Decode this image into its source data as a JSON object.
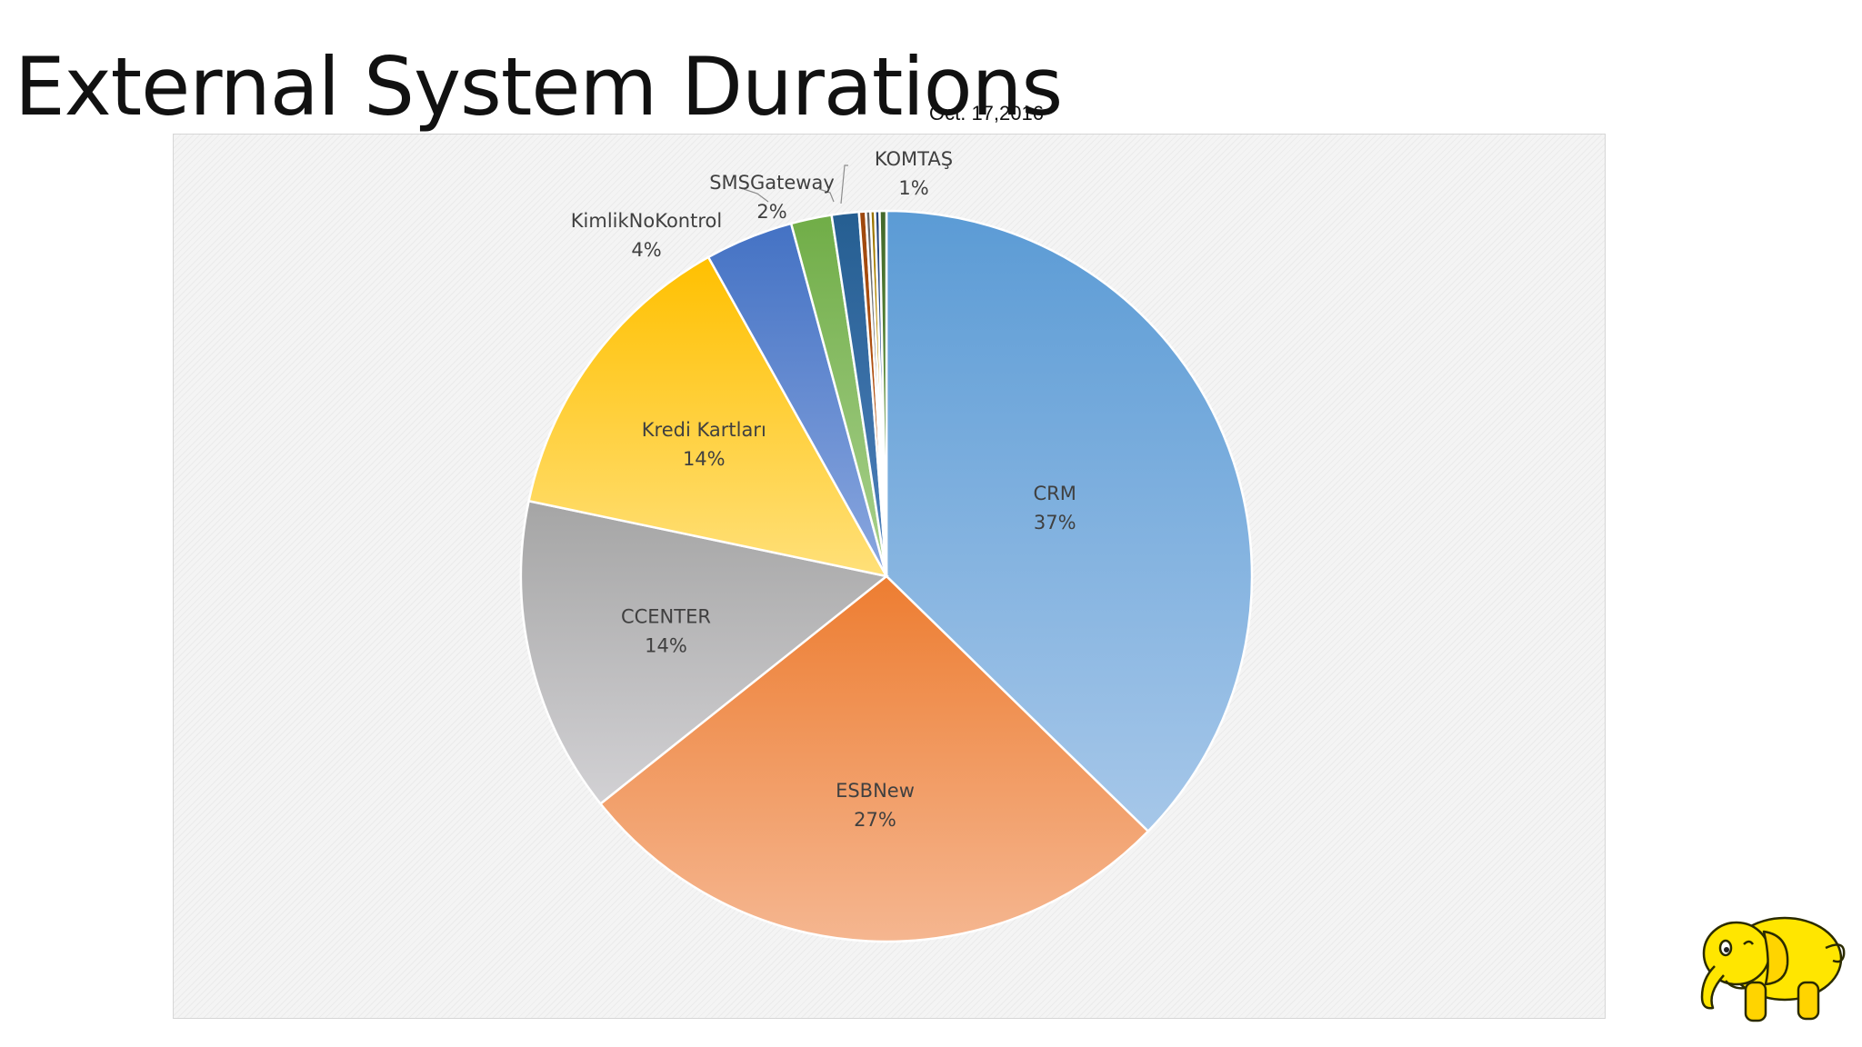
{
  "slide": {
    "title": "External System Durations",
    "date": "Oct. 17,2016"
  },
  "chart_data": {
    "type": "pie",
    "title": "",
    "start_angle_deg": 0,
    "direction": "clockwise",
    "slices": [
      {
        "name": "CRM",
        "label": "37%",
        "value": 37.3,
        "color_top": "#5b9bd5",
        "color_bottom": "#a6c7e9",
        "show_label": true,
        "label_inside": true
      },
      {
        "name": "ESBNew",
        "label": "27%",
        "value": 27.0,
        "color_top": "#ed7d31",
        "color_bottom": "#f5b690",
        "show_label": true,
        "label_inside": true
      },
      {
        "name": "CCENTER",
        "label": "14%",
        "value": 14.0,
        "color_top": "#a5a5a5",
        "color_bottom": "#d2d1d4",
        "show_label": true,
        "label_inside": true
      },
      {
        "name": "Kredi Kartları",
        "label": "14%",
        "value": 13.6,
        "color_top": "#ffc000",
        "color_bottom": "#ffe079",
        "show_label": true,
        "label_inside": true
      },
      {
        "name": "KimlikNoKontrol",
        "label": "4%",
        "value": 3.9,
        "color_top": "#4472c4",
        "color_bottom": "#8aa7df",
        "show_label": true,
        "label_inside": false
      },
      {
        "name": "SMSGateway",
        "label": "2%",
        "value": 1.8,
        "color_top": "#70ad47",
        "color_bottom": "#a9d18e",
        "show_label": true,
        "label_inside": false
      },
      {
        "name": "KOMTAŞ",
        "label": "1%",
        "value": 1.2,
        "color_top": "#255e91",
        "color_bottom": "#4f81bd",
        "show_label": true,
        "label_inside": false
      },
      {
        "name": "other-1",
        "label": "",
        "value": 0.3,
        "color_top": "#9e480e",
        "color_bottom": "#c65911",
        "show_label": false
      },
      {
        "name": "other-2",
        "label": "",
        "value": 0.2,
        "color_top": "#636363",
        "color_bottom": "#a5a5a5",
        "show_label": false
      },
      {
        "name": "other-3",
        "label": "",
        "value": 0.2,
        "color_top": "#997300",
        "color_bottom": "#ffc000",
        "show_label": false
      },
      {
        "name": "other-4",
        "label": "",
        "value": 0.2,
        "color_top": "#264478",
        "color_bottom": "#4472c4",
        "show_label": false
      },
      {
        "name": "other-5",
        "label": "",
        "value": 0.3,
        "color_top": "#43682b",
        "color_bottom": "#70ad47",
        "show_label": false
      }
    ]
  },
  "mascot": {
    "icon": "yellow-elephant-icon",
    "color": "#ffe600"
  }
}
